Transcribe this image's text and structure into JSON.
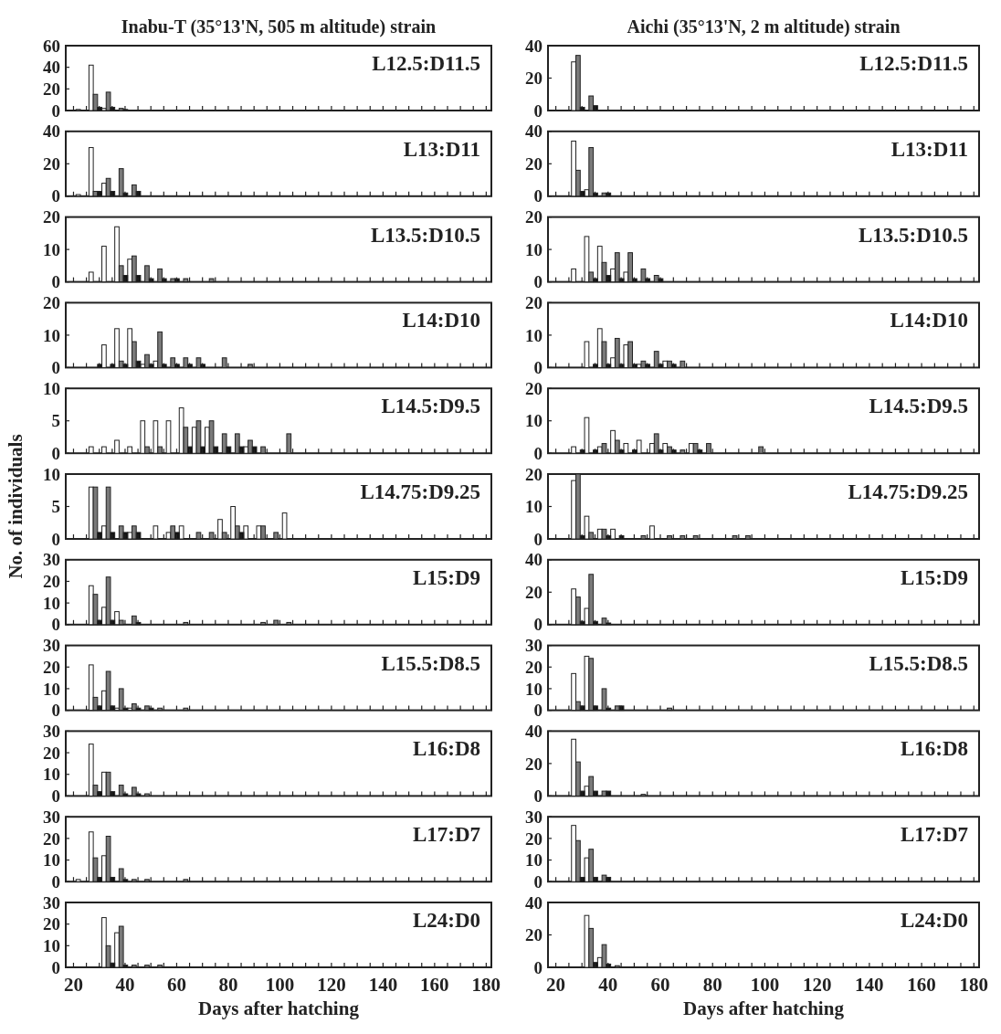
{
  "chart_data": [
    {
      "type": "bar",
      "title": "Inabu-T (35°13'N, 505 m altitude) strain",
      "annotations": [
        "L12.5:D11.5"
      ],
      "xlim": [
        17,
        182
      ],
      "ylim": [
        0,
        60
      ],
      "yticks": [
        0,
        20,
        40,
        60
      ],
      "tick_labels": "y",
      "xticks": [
        20,
        25,
        30,
        35,
        40,
        45,
        50,
        55,
        60,
        65,
        70,
        75,
        80,
        85,
        90,
        95,
        100,
        105,
        110,
        115,
        120,
        125,
        130,
        135,
        140,
        145,
        150,
        155,
        160,
        165,
        170,
        175,
        180
      ],
      "x": [
        23.5,
        28.5,
        33.5,
        38.5
      ],
      "series": [
        {
          "color": "#ffffff",
          "values": [
            1,
            42,
            2,
            null
          ]
        },
        {
          "color": "#7a7a7a",
          "values": [
            null,
            15,
            17,
            2
          ]
        },
        {
          "color": "#111111",
          "values": [
            null,
            3,
            3,
            1
          ]
        }
      ]
    },
    {
      "type": "bar",
      "title": "Aichi (35°13'N, 2 m altitude) strain",
      "annotations": [
        "L12.5:D11.5"
      ],
      "xlim": [
        17,
        182
      ],
      "ylim": [
        0,
        40
      ],
      "yticks": [
        0,
        20,
        40
      ],
      "tick_labels": "y",
      "xticks": [
        20,
        25,
        30,
        35,
        40,
        45,
        50,
        55,
        60,
        65,
        70,
        75,
        80,
        85,
        90,
        95,
        100,
        105,
        110,
        115,
        120,
        125,
        130,
        135,
        140,
        145,
        150,
        155,
        160,
        165,
        170,
        175,
        180
      ],
      "x": [
        28.5,
        33.5
      ],
      "series": [
        {
          "color": "#ffffff",
          "values": [
            30,
            null
          ]
        },
        {
          "color": "#7a7a7a",
          "values": [
            34,
            9
          ]
        },
        {
          "color": "#111111",
          "values": [
            2,
            3
          ]
        }
      ]
    },
    {
      "type": "bar",
      "annotations": [
        "L13:D11"
      ],
      "xlim": [
        17,
        182
      ],
      "ylim": [
        0,
        40
      ],
      "yticks": [
        0,
        20,
        40
      ],
      "tick_labels": "y",
      "xticks": [
        20,
        25,
        30,
        35,
        40,
        45,
        50,
        55,
        60,
        65,
        70,
        75,
        80,
        85,
        90,
        95,
        100,
        105,
        110,
        115,
        120,
        125,
        130,
        135,
        140,
        145,
        150,
        155,
        160,
        165,
        170,
        175,
        180
      ],
      "x": [
        23.5,
        28.5,
        33.5,
        38.5,
        43.5
      ],
      "series": [
        {
          "color": "#ffffff",
          "values": [
            1,
            30,
            8,
            null,
            null
          ]
        },
        {
          "color": "#7a7a7a",
          "values": [
            null,
            3,
            11,
            17,
            7
          ]
        },
        {
          "color": "#111111",
          "values": [
            null,
            3,
            3,
            2,
            3
          ]
        }
      ]
    },
    {
      "type": "bar",
      "annotations": [
        "L13:D11"
      ],
      "xlim": [
        17,
        182
      ],
      "ylim": [
        0,
        40
      ],
      "yticks": [
        0,
        20,
        40
      ],
      "tick_labels": "y",
      "xticks": [
        20,
        25,
        30,
        35,
        40,
        45,
        50,
        55,
        60,
        65,
        70,
        75,
        80,
        85,
        90,
        95,
        100,
        105,
        110,
        115,
        120,
        125,
        130,
        135,
        140,
        145,
        150,
        155,
        160,
        165,
        170,
        175,
        180
      ],
      "x": [
        28.5,
        33.5,
        38.5
      ],
      "series": [
        {
          "color": "#ffffff",
          "values": [
            34,
            4,
            null
          ]
        },
        {
          "color": "#7a7a7a",
          "values": [
            16,
            30,
            2
          ]
        },
        {
          "color": "#111111",
          "values": [
            3,
            2,
            2
          ]
        }
      ]
    },
    {
      "type": "bar",
      "annotations": [
        "L13.5:D10.5"
      ],
      "xlim": [
        17,
        182
      ],
      "ylim": [
        0,
        20
      ],
      "yticks": [
        0,
        10,
        20
      ],
      "tick_labels": "y",
      "xticks": [
        20,
        25,
        30,
        35,
        40,
        45,
        50,
        55,
        60,
        65,
        70,
        75,
        80,
        85,
        90,
        95,
        100,
        105,
        110,
        115,
        120,
        125,
        130,
        135,
        140,
        145,
        150,
        155,
        160,
        165,
        170,
        175,
        180
      ],
      "x": [
        28.5,
        33.5,
        38.5,
        43.5,
        48.5,
        53.5,
        58.5,
        63.5,
        73.5
      ],
      "series": [
        {
          "color": "#ffffff",
          "values": [
            3,
            11,
            17,
            7,
            null,
            null,
            null,
            null,
            null
          ]
        },
        {
          "color": "#7a7a7a",
          "values": [
            null,
            null,
            5,
            8,
            5,
            4,
            1,
            1,
            1
          ]
        },
        {
          "color": "#111111",
          "values": [
            null,
            null,
            2,
            2,
            1,
            1,
            1,
            null,
            null
          ]
        }
      ]
    },
    {
      "type": "bar",
      "annotations": [
        "L13.5:D10.5"
      ],
      "xlim": [
        17,
        182
      ],
      "ylim": [
        0,
        20
      ],
      "yticks": [
        0,
        10,
        20
      ],
      "tick_labels": "y",
      "xticks": [
        20,
        25,
        30,
        35,
        40,
        45,
        50,
        55,
        60,
        65,
        70,
        75,
        80,
        85,
        90,
        95,
        100,
        105,
        110,
        115,
        120,
        125,
        130,
        135,
        140,
        145,
        150,
        155,
        160,
        165,
        170,
        175,
        180
      ],
      "x": [
        28.5,
        33.5,
        38.5,
        43.5,
        48.5,
        53.5,
        58.5
      ],
      "series": [
        {
          "color": "#ffffff",
          "values": [
            4,
            14,
            11,
            4,
            3,
            null,
            null
          ]
        },
        {
          "color": "#7a7a7a",
          "values": [
            null,
            3,
            6,
            9,
            9,
            4,
            2
          ]
        },
        {
          "color": "#111111",
          "values": [
            null,
            1,
            2,
            1,
            1,
            1,
            1
          ]
        }
      ]
    },
    {
      "type": "bar",
      "annotations": [
        "L14:D10"
      ],
      "xlim": [
        17,
        182
      ],
      "ylim": [
        0,
        20
      ],
      "yticks": [
        0,
        10,
        20
      ],
      "tick_labels": "y",
      "xticks": [
        20,
        25,
        30,
        35,
        40,
        45,
        50,
        55,
        60,
        65,
        70,
        75,
        80,
        85,
        90,
        95,
        100,
        105,
        110,
        115,
        120,
        125,
        130,
        135,
        140,
        145,
        150,
        155,
        160,
        165,
        170,
        175,
        180
      ],
      "x": [
        28.5,
        33.5,
        38.5,
        43.5,
        48.5,
        53.5,
        58.5,
        63.5,
        68.5,
        78.5,
        88.5
      ],
      "series": [
        {
          "color": "#ffffff",
          "values": [
            null,
            7,
            12,
            12,
            1,
            2,
            null,
            null,
            null,
            null,
            null
          ]
        },
        {
          "color": "#7a7a7a",
          "values": [
            null,
            null,
            2,
            8,
            4,
            11,
            3,
            3,
            3,
            3,
            1
          ]
        },
        {
          "color": "#111111",
          "values": [
            1,
            1,
            1,
            2,
            1,
            1,
            1,
            1,
            1,
            null,
            null
          ]
        }
      ]
    },
    {
      "type": "bar",
      "annotations": [
        "L14:D10"
      ],
      "xlim": [
        17,
        182
      ],
      "ylim": [
        0,
        20
      ],
      "yticks": [
        0,
        10,
        20
      ],
      "tick_labels": "y",
      "xticks": [
        20,
        25,
        30,
        35,
        40,
        45,
        50,
        55,
        60,
        65,
        70,
        75,
        80,
        85,
        90,
        95,
        100,
        105,
        110,
        115,
        120,
        125,
        130,
        135,
        140,
        145,
        150,
        155,
        160,
        165,
        170,
        175,
        180
      ],
      "x": [
        33.5,
        38.5,
        43.5,
        48.5,
        53.5,
        58.5,
        63.5,
        68.5
      ],
      "series": [
        {
          "color": "#ffffff",
          "values": [
            8,
            12,
            3,
            7,
            1,
            null,
            2,
            null
          ]
        },
        {
          "color": "#7a7a7a",
          "values": [
            null,
            8,
            9,
            8,
            2,
            5,
            2,
            2
          ]
        },
        {
          "color": "#111111",
          "values": [
            1,
            1,
            1,
            1,
            1,
            1,
            1,
            null
          ]
        }
      ]
    },
    {
      "type": "bar",
      "annotations": [
        "L14.5:D9.5"
      ],
      "xlim": [
        17,
        182
      ],
      "ylim": [
        0,
        10
      ],
      "yticks": [
        0,
        5,
        10
      ],
      "tick_labels": "y",
      "xticks": [
        20,
        25,
        30,
        35,
        40,
        45,
        50,
        55,
        60,
        65,
        70,
        75,
        80,
        85,
        90,
        95,
        100,
        105,
        110,
        115,
        120,
        125,
        130,
        135,
        140,
        145,
        150,
        155,
        160,
        165,
        170,
        175,
        180
      ],
      "x": [
        28.5,
        33.5,
        38.5,
        43.5,
        48.5,
        53.5,
        58.5,
        63.5,
        68.5,
        73.5,
        78.5,
        83.5,
        88.5,
        93.5,
        103.5
      ],
      "series": [
        {
          "color": "#ffffff",
          "values": [
            1,
            1,
            2,
            1,
            5,
            5,
            5,
            7,
            4,
            4,
            null,
            null,
            1,
            null,
            null
          ]
        },
        {
          "color": "#7a7a7a",
          "values": [
            null,
            null,
            null,
            null,
            1,
            1,
            null,
            4,
            5,
            5,
            3,
            3,
            2,
            1,
            3
          ]
        },
        {
          "color": "#111111",
          "values": [
            null,
            null,
            null,
            null,
            null,
            null,
            null,
            1,
            1,
            1,
            1,
            1,
            1,
            null,
            null
          ]
        }
      ]
    },
    {
      "type": "bar",
      "annotations": [
        "L14.5:D9.5"
      ],
      "xlim": [
        17,
        182
      ],
      "ylim": [
        0,
        20
      ],
      "yticks": [
        0,
        10,
        20
      ],
      "tick_labels": "y",
      "xticks": [
        20,
        25,
        30,
        35,
        40,
        45,
        50,
        55,
        60,
        65,
        70,
        75,
        80,
        85,
        90,
        95,
        100,
        105,
        110,
        115,
        120,
        125,
        130,
        135,
        140,
        145,
        150,
        155,
        160,
        165,
        170,
        175,
        180
      ],
      "x": [
        28.5,
        33.5,
        38.5,
        43.5,
        48.5,
        53.5,
        58.5,
        63.5,
        68.5,
        73.5,
        78.5,
        98.5
      ],
      "series": [
        {
          "color": "#ffffff",
          "values": [
            2,
            11,
            2,
            7,
            3,
            4,
            3,
            3,
            null,
            3,
            null,
            null
          ]
        },
        {
          "color": "#7a7a7a",
          "values": [
            null,
            null,
            3,
            4,
            null,
            null,
            6,
            2,
            1,
            3,
            3,
            2
          ]
        },
        {
          "color": "#111111",
          "values": [
            1,
            1,
            null,
            1,
            1,
            null,
            1,
            1,
            null,
            1,
            null,
            null
          ]
        }
      ]
    },
    {
      "type": "bar",
      "ylabel": "No. of individuals",
      "annotations": [
        "L14.75:D9.25"
      ],
      "xlim": [
        17,
        182
      ],
      "ylim": [
        0,
        10
      ],
      "yticks": [
        0,
        5,
        10
      ],
      "tick_labels": "y",
      "xticks": [
        20,
        25,
        30,
        35,
        40,
        45,
        50,
        55,
        60,
        65,
        70,
        75,
        80,
        85,
        90,
        95,
        100,
        105,
        110,
        115,
        120,
        125,
        130,
        135,
        140,
        145,
        150,
        155,
        160,
        165,
        170,
        175,
        180
      ],
      "x": [
        28.5,
        33.5,
        38.5,
        43.5,
        53.5,
        58.5,
        63.5,
        68.5,
        73.5,
        78.5,
        83.5,
        88.5,
        93.5,
        98.5,
        103.5
      ],
      "series": [
        {
          "color": "#ffffff",
          "values": [
            8,
            2,
            null,
            1,
            2,
            1,
            2,
            null,
            null,
            3,
            5,
            2,
            2,
            null,
            4
          ]
        },
        {
          "color": "#7a7a7a",
          "values": [
            8,
            8,
            2,
            2,
            null,
            2,
            null,
            1,
            1,
            1,
            2,
            null,
            2,
            1,
            null
          ]
        },
        {
          "color": "#111111",
          "values": [
            1,
            1,
            1,
            1,
            null,
            1,
            null,
            null,
            null,
            null,
            1,
            null,
            null,
            null,
            null
          ]
        }
      ]
    },
    {
      "type": "bar",
      "annotations": [
        "L14.75:D9.25"
      ],
      "xlim": [
        17,
        182
      ],
      "ylim": [
        0,
        20
      ],
      "yticks": [
        0,
        10,
        20
      ],
      "tick_labels": "y",
      "xticks": [
        20,
        25,
        30,
        35,
        40,
        45,
        50,
        55,
        60,
        65,
        70,
        75,
        80,
        85,
        90,
        95,
        100,
        105,
        110,
        115,
        120,
        125,
        130,
        135,
        140,
        145,
        150,
        155,
        160,
        165,
        170,
        175,
        180
      ],
      "x": [
        28.5,
        33.5,
        38.5,
        43.5,
        53.5,
        58.5,
        63.5,
        68.5,
        73.5,
        88.5,
        93.5
      ],
      "series": [
        {
          "color": "#ffffff",
          "values": [
            18,
            7,
            3,
            3,
            null,
            4,
            null,
            null,
            null,
            null,
            null
          ]
        },
        {
          "color": "#7a7a7a",
          "values": [
            20,
            2,
            3,
            null,
            1,
            null,
            1,
            1,
            1,
            1,
            1
          ]
        },
        {
          "color": "#111111",
          "values": [
            1,
            null,
            1,
            1,
            null,
            null,
            null,
            null,
            null,
            null,
            null
          ]
        }
      ]
    },
    {
      "type": "bar",
      "annotations": [
        "L15:D9"
      ],
      "xlim": [
        17,
        182
      ],
      "ylim": [
        0,
        30
      ],
      "yticks": [
        0,
        10,
        20,
        30
      ],
      "tick_labels": "y",
      "xticks": [
        20,
        25,
        30,
        35,
        40,
        45,
        50,
        55,
        60,
        65,
        70,
        75,
        80,
        85,
        90,
        95,
        100,
        105,
        110,
        115,
        120,
        125,
        130,
        135,
        140,
        145,
        150,
        155,
        160,
        165,
        170,
        175,
        180
      ],
      "x": [
        28.5,
        33.5,
        38.5,
        43.5,
        63.5,
        93.5,
        98.5,
        103.5
      ],
      "series": [
        {
          "color": "#ffffff",
          "values": [
            18,
            8,
            6,
            null,
            null,
            null,
            null,
            null
          ]
        },
        {
          "color": "#7a7a7a",
          "values": [
            14,
            22,
            2,
            4,
            1,
            1,
            2,
            1
          ]
        },
        {
          "color": "#111111",
          "values": [
            2,
            2,
            null,
            1,
            null,
            null,
            null,
            null
          ]
        }
      ]
    },
    {
      "type": "bar",
      "annotations": [
        "L15:D9"
      ],
      "xlim": [
        17,
        182
      ],
      "ylim": [
        0,
        40
      ],
      "yticks": [
        0,
        20,
        40
      ],
      "tick_labels": "y",
      "xticks": [
        20,
        25,
        30,
        35,
        40,
        45,
        50,
        55,
        60,
        65,
        70,
        75,
        80,
        85,
        90,
        95,
        100,
        105,
        110,
        115,
        120,
        125,
        130,
        135,
        140,
        145,
        150,
        155,
        160,
        165,
        170,
        175,
        180
      ],
      "x": [
        28.5,
        33.5,
        38.5
      ],
      "series": [
        {
          "color": "#ffffff",
          "values": [
            22,
            10,
            null
          ]
        },
        {
          "color": "#7a7a7a",
          "values": [
            17,
            31,
            4
          ]
        },
        {
          "color": "#111111",
          "values": [
            2,
            2,
            1
          ]
        }
      ]
    },
    {
      "type": "bar",
      "annotations": [
        "L15.5:D8.5"
      ],
      "xlim": [
        17,
        182
      ],
      "ylim": [
        0,
        30
      ],
      "yticks": [
        0,
        10,
        20,
        30
      ],
      "tick_labels": "y",
      "xticks": [
        20,
        25,
        30,
        35,
        40,
        45,
        50,
        55,
        60,
        65,
        70,
        75,
        80,
        85,
        90,
        95,
        100,
        105,
        110,
        115,
        120,
        125,
        130,
        135,
        140,
        145,
        150,
        155,
        160,
        165,
        170,
        175,
        180
      ],
      "x": [
        28.5,
        33.5,
        38.5,
        43.5,
        48.5,
        53.5,
        63.5
      ],
      "series": [
        {
          "color": "#ffffff",
          "values": [
            21,
            9,
            1,
            1,
            null,
            null,
            null
          ]
        },
        {
          "color": "#7a7a7a",
          "values": [
            6,
            18,
            10,
            3,
            2,
            1,
            1
          ]
        },
        {
          "color": "#111111",
          "values": [
            2,
            2,
            1,
            1,
            1,
            null,
            null
          ]
        }
      ]
    },
    {
      "type": "bar",
      "annotations": [
        "L15.5:D8.5"
      ],
      "xlim": [
        17,
        182
      ],
      "ylim": [
        0,
        30
      ],
      "yticks": [
        0,
        10,
        20,
        30
      ],
      "tick_labels": "y",
      "xticks": [
        20,
        25,
        30,
        35,
        40,
        45,
        50,
        55,
        60,
        65,
        70,
        75,
        80,
        85,
        90,
        95,
        100,
        105,
        110,
        115,
        120,
        125,
        130,
        135,
        140,
        145,
        150,
        155,
        160,
        165,
        170,
        175,
        180
      ],
      "x": [
        28.5,
        33.5,
        38.5,
        43.5,
        63.5
      ],
      "series": [
        {
          "color": "#ffffff",
          "values": [
            17,
            25,
            null,
            null,
            null
          ]
        },
        {
          "color": "#7a7a7a",
          "values": [
            4,
            24,
            10,
            2,
            1
          ]
        },
        {
          "color": "#111111",
          "values": [
            2,
            2,
            1,
            2,
            null
          ]
        }
      ]
    },
    {
      "type": "bar",
      "annotations": [
        "L16:D8"
      ],
      "xlim": [
        17,
        182
      ],
      "ylim": [
        0,
        30
      ],
      "yticks": [
        0,
        10,
        20,
        30
      ],
      "tick_labels": "y",
      "xticks": [
        20,
        25,
        30,
        35,
        40,
        45,
        50,
        55,
        60,
        65,
        70,
        75,
        80,
        85,
        90,
        95,
        100,
        105,
        110,
        115,
        120,
        125,
        130,
        135,
        140,
        145,
        150,
        155,
        160,
        165,
        170,
        175,
        180
      ],
      "x": [
        28.5,
        33.5,
        38.5,
        43.5,
        48.5
      ],
      "series": [
        {
          "color": "#ffffff",
          "values": [
            24,
            11,
            null,
            null,
            null
          ]
        },
        {
          "color": "#7a7a7a",
          "values": [
            5,
            11,
            5,
            4,
            1
          ]
        },
        {
          "color": "#111111",
          "values": [
            2,
            2,
            1,
            1,
            null
          ]
        }
      ]
    },
    {
      "type": "bar",
      "annotations": [
        "L16:D8"
      ],
      "xlim": [
        17,
        182
      ],
      "ylim": [
        0,
        40
      ],
      "yticks": [
        0,
        20,
        40
      ],
      "tick_labels": "y",
      "xticks": [
        20,
        25,
        30,
        35,
        40,
        45,
        50,
        55,
        60,
        65,
        70,
        75,
        80,
        85,
        90,
        95,
        100,
        105,
        110,
        115,
        120,
        125,
        130,
        135,
        140,
        145,
        150,
        155,
        160,
        165,
        170,
        175,
        180
      ],
      "x": [
        28.5,
        33.5,
        38.5,
        53.5
      ],
      "series": [
        {
          "color": "#ffffff",
          "values": [
            35,
            6,
            null,
            null
          ]
        },
        {
          "color": "#7a7a7a",
          "values": [
            21,
            12,
            3,
            1
          ]
        },
        {
          "color": "#111111",
          "values": [
            3,
            3,
            3,
            null
          ]
        }
      ]
    },
    {
      "type": "bar",
      "annotations": [
        "L17:D7"
      ],
      "xlim": [
        17,
        182
      ],
      "ylim": [
        0,
        30
      ],
      "yticks": [
        0,
        10,
        20,
        30
      ],
      "tick_labels": "y",
      "xticks": [
        20,
        25,
        30,
        35,
        40,
        45,
        50,
        55,
        60,
        65,
        70,
        75,
        80,
        85,
        90,
        95,
        100,
        105,
        110,
        115,
        120,
        125,
        130,
        135,
        140,
        145,
        150,
        155,
        160,
        165,
        170,
        175,
        180
      ],
      "x": [
        23.5,
        28.5,
        33.5,
        38.5,
        43.5,
        48.5,
        63.5
      ],
      "series": [
        {
          "color": "#ffffff",
          "values": [
            1,
            23,
            12,
            null,
            null,
            null,
            null
          ]
        },
        {
          "color": "#7a7a7a",
          "values": [
            null,
            11,
            21,
            6,
            1,
            1,
            1
          ]
        },
        {
          "color": "#111111",
          "values": [
            null,
            2,
            2,
            1,
            null,
            null,
            null
          ]
        }
      ]
    },
    {
      "type": "bar",
      "annotations": [
        "L17:D7"
      ],
      "xlim": [
        17,
        182
      ],
      "ylim": [
        0,
        30
      ],
      "yticks": [
        0,
        10,
        20,
        30
      ],
      "tick_labels": "y",
      "xticks": [
        20,
        25,
        30,
        35,
        40,
        45,
        50,
        55,
        60,
        65,
        70,
        75,
        80,
        85,
        90,
        95,
        100,
        105,
        110,
        115,
        120,
        125,
        130,
        135,
        140,
        145,
        150,
        155,
        160,
        165,
        170,
        175,
        180
      ],
      "x": [
        28.5,
        33.5,
        38.5
      ],
      "series": [
        {
          "color": "#ffffff",
          "values": [
            26,
            11,
            null
          ]
        },
        {
          "color": "#7a7a7a",
          "values": [
            19,
            15,
            3
          ]
        },
        {
          "color": "#111111",
          "values": [
            2,
            2,
            2
          ]
        }
      ]
    },
    {
      "type": "bar",
      "xlabel": "Days after hatching",
      "annotations": [
        "L24:D0"
      ],
      "xlim": [
        17,
        182
      ],
      "ylim": [
        0,
        30
      ],
      "yticks": [
        0,
        10,
        20,
        30
      ],
      "xticks": [
        20,
        {
          "value": 25,
          "label": null
        },
        {
          "value": 30,
          "label": null
        },
        {
          "value": 35,
          "label": null
        },
        40,
        {
          "value": 45,
          "label": null
        },
        {
          "value": 50,
          "label": null
        },
        {
          "value": 55,
          "label": null
        },
        60,
        {
          "value": 65,
          "label": null
        },
        {
          "value": 70,
          "label": null
        },
        {
          "value": 75,
          "label": null
        },
        80,
        {
          "value": 85,
          "label": null
        },
        {
          "value": 90,
          "label": null
        },
        {
          "value": 95,
          "label": null
        },
        100,
        {
          "value": 105,
          "label": null
        },
        {
          "value": 110,
          "label": null
        },
        {
          "value": 115,
          "label": null
        },
        120,
        {
          "value": 125,
          "label": null
        },
        {
          "value": 130,
          "label": null
        },
        {
          "value": 135,
          "label": null
        },
        140,
        {
          "value": 145,
          "label": null
        },
        {
          "value": 150,
          "label": null
        },
        {
          "value": 155,
          "label": null
        },
        160,
        {
          "value": 165,
          "label": null
        },
        {
          "value": 170,
          "label": null
        },
        {
          "value": 175,
          "label": null
        },
        180
      ],
      "x": [
        33.5,
        38.5,
        43.5,
        48.5,
        53.5
      ],
      "series": [
        {
          "color": "#ffffff",
          "values": [
            23,
            16,
            null,
            null,
            null
          ]
        },
        {
          "color": "#7a7a7a",
          "values": [
            10,
            19,
            1,
            1,
            1
          ]
        },
        {
          "color": "#111111",
          "values": [
            2,
            1,
            null,
            null,
            null
          ]
        }
      ]
    },
    {
      "type": "bar",
      "xlabel": "Days after hatching",
      "annotations": [
        "L24:D0"
      ],
      "xlim": [
        17,
        182
      ],
      "ylim": [
        0,
        40
      ],
      "yticks": [
        0,
        20,
        40
      ],
      "xticks": [
        20,
        {
          "value": 25,
          "label": null
        },
        {
          "value": 30,
          "label": null
        },
        {
          "value": 35,
          "label": null
        },
        40,
        {
          "value": 45,
          "label": null
        },
        {
          "value": 50,
          "label": null
        },
        {
          "value": 55,
          "label": null
        },
        60,
        {
          "value": 65,
          "label": null
        },
        {
          "value": 70,
          "label": null
        },
        {
          "value": 75,
          "label": null
        },
        80,
        {
          "value": 85,
          "label": null
        },
        {
          "value": 90,
          "label": null
        },
        {
          "value": 95,
          "label": null
        },
        100,
        {
          "value": 105,
          "label": null
        },
        {
          "value": 110,
          "label": null
        },
        {
          "value": 115,
          "label": null
        },
        120,
        {
          "value": 125,
          "label": null
        },
        {
          "value": 130,
          "label": null
        },
        {
          "value": 135,
          "label": null
        },
        140,
        {
          "value": 145,
          "label": null
        },
        {
          "value": 150,
          "label": null
        },
        {
          "value": 155,
          "label": null
        },
        160,
        {
          "value": 165,
          "label": null
        },
        {
          "value": 170,
          "label": null
        },
        {
          "value": 175,
          "label": null
        },
        180
      ],
      "x": [
        33.5,
        38.5,
        43.5
      ],
      "series": [
        {
          "color": "#ffffff",
          "values": [
            32,
            6,
            null
          ]
        },
        {
          "color": "#7a7a7a",
          "values": [
            24,
            14,
            1
          ]
        },
        {
          "color": "#111111",
          "values": [
            3,
            2,
            null
          ]
        }
      ]
    }
  ]
}
